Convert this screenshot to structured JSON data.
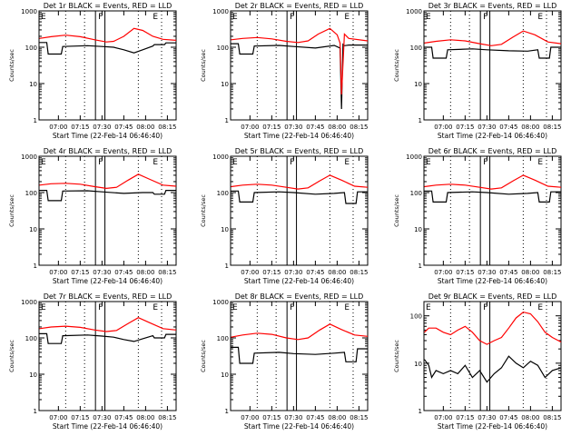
{
  "chart_data": [
    {
      "type": "line",
      "title": "Det 1r BLACK = Events, RED = LLD",
      "xlabel": "Start Time (22-Feb-14 06:46:40)",
      "ylabel": "Counts/sec",
      "y_scale": "log",
      "ylim": [
        1,
        1000
      ],
      "xticks": [
        "07:00",
        "07:15",
        "07:30",
        "07:45",
        "08:00",
        "08:15"
      ],
      "yticks": [
        "1",
        "10",
        "100",
        "1000"
      ],
      "marker_labels": [
        "E",
        "F",
        "E"
      ],
      "series": [
        {
          "name": "Events",
          "color": "#000000",
          "x": [
            "06:47",
            "06:52",
            "06:53",
            "07:02",
            "07:03",
            "07:20",
            "07:30",
            "07:38",
            "07:45",
            "07:52",
            "07:58",
            "08:05",
            "08:06",
            "08:13",
            "08:14",
            "08:21"
          ],
          "y": [
            135,
            135,
            65,
            65,
            105,
            110,
            105,
            100,
            85,
            70,
            85,
            108,
            118,
            118,
            132,
            132
          ]
        },
        {
          "name": "LLD",
          "color": "#ff0000",
          "x": [
            "06:47",
            "06:55",
            "07:05",
            "07:15",
            "07:25",
            "07:33",
            "07:38",
            "07:45",
            "07:52",
            "07:58",
            "08:05",
            "08:12",
            "08:21"
          ],
          "y": [
            175,
            195,
            215,
            195,
            160,
            140,
            145,
            200,
            330,
            290,
            200,
            165,
            155
          ]
        }
      ]
    },
    {
      "type": "line",
      "title": "Det 2r BLACK = Events, RED = LLD",
      "xlabel": "Start Time (22-Feb-14 06:46:40)",
      "ylabel": "Counts/sec",
      "y_scale": "log",
      "ylim": [
        1,
        1000
      ],
      "xticks": [
        "07:00",
        "07:15",
        "07:30",
        "07:45",
        "08:00",
        "08:15"
      ],
      "yticks": [
        "1",
        "10",
        "100",
        "1000"
      ],
      "marker_labels": [
        "E",
        "F",
        "E"
      ],
      "series": [
        {
          "name": "Events",
          "color": "#000000",
          "x": [
            "06:47",
            "06:52",
            "06:53",
            "07:02",
            "07:03",
            "07:20",
            "07:30",
            "07:45",
            "07:58",
            "08:02",
            "08:03",
            "08:04",
            "08:05",
            "08:08",
            "08:21"
          ],
          "y": [
            125,
            125,
            65,
            65,
            108,
            112,
            105,
            95,
            112,
            95,
            2,
            120,
            110,
            115,
            115
          ]
        },
        {
          "name": "LLD",
          "color": "#ff0000",
          "x": [
            "06:47",
            "06:55",
            "07:05",
            "07:15",
            "07:25",
            "07:33",
            "07:40",
            "07:47",
            "07:55",
            "08:00",
            "08:02",
            "08:03",
            "08:05",
            "08:08",
            "08:21"
          ],
          "y": [
            160,
            175,
            185,
            170,
            145,
            135,
            150,
            230,
            330,
            220,
            130,
            5,
            230,
            175,
            150
          ]
        }
      ]
    },
    {
      "type": "line",
      "title": "Det 3r BLACK = Events, RED = LLD",
      "xlabel": "Start Time (22-Feb-14 06:46:40)",
      "ylabel": "Counts/sec",
      "y_scale": "log",
      "ylim": [
        1,
        1000
      ],
      "xticks": [
        "07:00",
        "07:15",
        "07:30",
        "07:45",
        "08:00",
        "08:15"
      ],
      "yticks": [
        "1",
        "10",
        "100",
        "1000"
      ],
      "marker_labels": [
        "E",
        "F",
        "E"
      ],
      "series": [
        {
          "name": "Events",
          "color": "#000000",
          "x": [
            "06:47",
            "06:52",
            "06:53",
            "07:02",
            "07:03",
            "07:20",
            "07:30",
            "07:45",
            "07:58",
            "08:05",
            "08:06",
            "08:13",
            "08:14",
            "08:21"
          ],
          "y": [
            100,
            100,
            50,
            50,
            85,
            90,
            85,
            80,
            78,
            85,
            50,
            50,
            100,
            100
          ]
        },
        {
          "name": "LLD",
          "color": "#ff0000",
          "x": [
            "06:47",
            "06:55",
            "07:05",
            "07:15",
            "07:25",
            "07:33",
            "07:40",
            "07:48",
            "07:55",
            "08:03",
            "08:12",
            "08:21"
          ],
          "y": [
            130,
            145,
            160,
            150,
            125,
            110,
            120,
            190,
            280,
            220,
            140,
            125
          ]
        }
      ]
    },
    {
      "type": "line",
      "title": "Det 4r BLACK = Events, RED = LLD",
      "xlabel": "Start Time (22-Feb-14 06:46:40)",
      "ylabel": "Counts/sec",
      "y_scale": "log",
      "ylim": [
        1,
        1000
      ],
      "xticks": [
        "07:00",
        "07:15",
        "07:30",
        "07:45",
        "08:00",
        "08:15"
      ],
      "yticks": [
        "1",
        "10",
        "100",
        "1000"
      ],
      "marker_labels": [
        "E",
        "F",
        "E"
      ],
      "series": [
        {
          "name": "Events",
          "color": "#000000",
          "x": [
            "06:47",
            "06:52",
            "06:53",
            "07:02",
            "07:03",
            "07:20",
            "07:30",
            "07:45",
            "07:58",
            "08:05",
            "08:06",
            "08:13",
            "08:14",
            "08:21"
          ],
          "y": [
            115,
            115,
            60,
            60,
            110,
            112,
            105,
            95,
            100,
            100,
            90,
            90,
            115,
            115
          ]
        },
        {
          "name": "LLD",
          "color": "#ff0000",
          "x": [
            "06:47",
            "06:55",
            "07:05",
            "07:15",
            "07:25",
            "07:33",
            "07:40",
            "07:48",
            "07:55",
            "08:03",
            "08:12",
            "08:21"
          ],
          "y": [
            160,
            175,
            180,
            170,
            145,
            130,
            140,
            220,
            320,
            230,
            160,
            150
          ]
        }
      ]
    },
    {
      "type": "line",
      "title": "Det 5r BLACK = Events, RED = LLD",
      "xlabel": "Start Time (22-Feb-14 06:46:40)",
      "ylabel": "Counts/sec",
      "y_scale": "log",
      "ylim": [
        1,
        1000
      ],
      "xticks": [
        "07:00",
        "07:15",
        "07:30",
        "07:45",
        "08:00",
        "08:15"
      ],
      "yticks": [
        "1",
        "10",
        "100",
        "1000"
      ],
      "marker_labels": [
        "E",
        "F",
        "E"
      ],
      "series": [
        {
          "name": "Events",
          "color": "#000000",
          "x": [
            "06:47",
            "06:52",
            "06:53",
            "07:02",
            "07:03",
            "07:20",
            "07:30",
            "07:45",
            "07:58",
            "08:05",
            "08:06",
            "08:13",
            "08:14",
            "08:21"
          ],
          "y": [
            110,
            110,
            55,
            55,
            100,
            105,
            100,
            90,
            95,
            100,
            50,
            50,
            105,
            105
          ]
        },
        {
          "name": "LLD",
          "color": "#ff0000",
          "x": [
            "06:47",
            "06:55",
            "07:05",
            "07:15",
            "07:25",
            "07:33",
            "07:40",
            "07:48",
            "07:55",
            "08:03",
            "08:12",
            "08:21"
          ],
          "y": [
            145,
            160,
            170,
            160,
            140,
            125,
            135,
            210,
            300,
            220,
            150,
            140
          ]
        }
      ]
    },
    {
      "type": "line",
      "title": "Det 6r BLACK = Events, RED = LLD",
      "xlabel": "Start Time (22-Feb-14 06:46:40)",
      "ylabel": "Counts/sec",
      "y_scale": "log",
      "ylim": [
        1,
        1000
      ],
      "xticks": [
        "07:00",
        "07:15",
        "07:30",
        "07:45",
        "08:00",
        "08:15"
      ],
      "yticks": [
        "1",
        "10",
        "100",
        "1000"
      ],
      "marker_labels": [
        "E",
        "F",
        "E"
      ],
      "series": [
        {
          "name": "Events",
          "color": "#000000",
          "x": [
            "06:47",
            "06:52",
            "06:53",
            "07:02",
            "07:03",
            "07:20",
            "07:30",
            "07:45",
            "07:58",
            "08:05",
            "08:06",
            "08:13",
            "08:14",
            "08:21"
          ],
          "y": [
            110,
            110,
            55,
            55,
            100,
            105,
            100,
            90,
            95,
            100,
            55,
            55,
            105,
            105
          ]
        },
        {
          "name": "LLD",
          "color": "#ff0000",
          "x": [
            "06:47",
            "06:55",
            "07:05",
            "07:15",
            "07:25",
            "07:33",
            "07:40",
            "07:48",
            "07:55",
            "08:03",
            "08:12",
            "08:21"
          ],
          "y": [
            145,
            160,
            170,
            160,
            140,
            125,
            135,
            210,
            300,
            220,
            150,
            140
          ]
        }
      ]
    },
    {
      "type": "line",
      "title": "Det 7r BLACK = Events, RED = LLD",
      "xlabel": "Start Time (22-Feb-14 06:46:40)",
      "ylabel": "Counts/sec",
      "y_scale": "log",
      "ylim": [
        1,
        1000
      ],
      "xticks": [
        "07:00",
        "07:15",
        "07:30",
        "07:45",
        "08:00",
        "08:15"
      ],
      "yticks": [
        "1",
        "10",
        "100",
        "1000"
      ],
      "marker_labels": [
        "E",
        "F",
        "E"
      ],
      "series": [
        {
          "name": "Events",
          "color": "#000000",
          "x": [
            "06:47",
            "06:52",
            "06:53",
            "07:02",
            "07:03",
            "07:20",
            "07:30",
            "07:38",
            "07:45",
            "07:52",
            "07:58",
            "08:05",
            "08:06",
            "08:13",
            "08:14",
            "08:21"
          ],
          "y": [
            130,
            130,
            70,
            70,
            115,
            120,
            112,
            105,
            90,
            80,
            95,
            115,
            100,
            100,
            125,
            125
          ]
        },
        {
          "name": "LLD",
          "color": "#ff0000",
          "x": [
            "06:47",
            "06:55",
            "07:05",
            "07:15",
            "07:25",
            "07:33",
            "07:40",
            "07:48",
            "07:55",
            "08:03",
            "08:12",
            "08:21"
          ],
          "y": [
            180,
            200,
            210,
            195,
            165,
            150,
            160,
            250,
            360,
            260,
            180,
            165
          ]
        }
      ]
    },
    {
      "type": "line",
      "title": "Det 8r BLACK = Events, RED = LLD",
      "xlabel": "Start Time (22-Feb-14 06:46:40)",
      "ylabel": "Counts/sec",
      "y_scale": "log",
      "ylim": [
        1,
        1000
      ],
      "xticks": [
        "07:00",
        "07:15",
        "07:30",
        "07:45",
        "08:00",
        "08:15"
      ],
      "yticks": [
        "1",
        "10",
        "100",
        "1000"
      ],
      "marker_labels": [
        "E",
        "F",
        "E"
      ],
      "series": [
        {
          "name": "Events",
          "color": "#000000",
          "x": [
            "06:47",
            "06:52",
            "06:53",
            "07:02",
            "07:03",
            "07:20",
            "07:30",
            "07:45",
            "07:58",
            "08:05",
            "08:06",
            "08:13",
            "08:14",
            "08:21"
          ],
          "y": [
            55,
            55,
            20,
            20,
            38,
            40,
            37,
            35,
            38,
            40,
            22,
            22,
            50,
            50
          ]
        },
        {
          "name": "LLD",
          "color": "#ff0000",
          "x": [
            "06:47",
            "06:55",
            "07:05",
            "07:15",
            "07:25",
            "07:33",
            "07:40",
            "07:48",
            "07:55",
            "08:03",
            "08:12",
            "08:21"
          ],
          "y": [
            105,
            120,
            135,
            125,
            100,
            90,
            100,
            165,
            240,
            170,
            120,
            110
          ]
        }
      ]
    },
    {
      "type": "line",
      "title": "Det 9r BLACK = Events, RED = LLD",
      "xlabel": "Start Time (22-Feb-14 06:46:40)",
      "ylabel": "Counts/sec",
      "y_scale": "log",
      "ylim": [
        1,
        200
      ],
      "xticks": [
        "07:00",
        "07:15",
        "07:30",
        "07:45",
        "08:00",
        "08:15"
      ],
      "yticks": [
        "1",
        "10",
        "100"
      ],
      "marker_labels": [
        "E",
        "F",
        "E"
      ],
      "series": [
        {
          "name": "Events",
          "color": "#000000",
          "x": [
            "06:47",
            "06:50",
            "06:52",
            "06:55",
            "07:00",
            "07:05",
            "07:10",
            "07:15",
            "07:20",
            "07:25",
            "07:30",
            "07:35",
            "07:40",
            "07:45",
            "07:50",
            "07:55",
            "08:00",
            "08:05",
            "08:10",
            "08:15",
            "08:21"
          ],
          "y": [
            12,
            9,
            5,
            7,
            6,
            7,
            6,
            9,
            5,
            7,
            4,
            6,
            8,
            14,
            10,
            8,
            11,
            9,
            5,
            7,
            8
          ]
        },
        {
          "name": "LLD",
          "color": "#ff0000",
          "x": [
            "06:47",
            "06:50",
            "06:55",
            "07:00",
            "07:05",
            "07:10",
            "07:15",
            "07:20",
            "07:25",
            "07:30",
            "07:35",
            "07:40",
            "07:45",
            "07:50",
            "07:55",
            "08:00",
            "08:05",
            "08:10",
            "08:15",
            "08:21"
          ],
          "y": [
            45,
            55,
            55,
            45,
            40,
            50,
            60,
            45,
            30,
            25,
            30,
            35,
            55,
            90,
            120,
            110,
            75,
            45,
            35,
            28
          ]
        }
      ]
    }
  ]
}
